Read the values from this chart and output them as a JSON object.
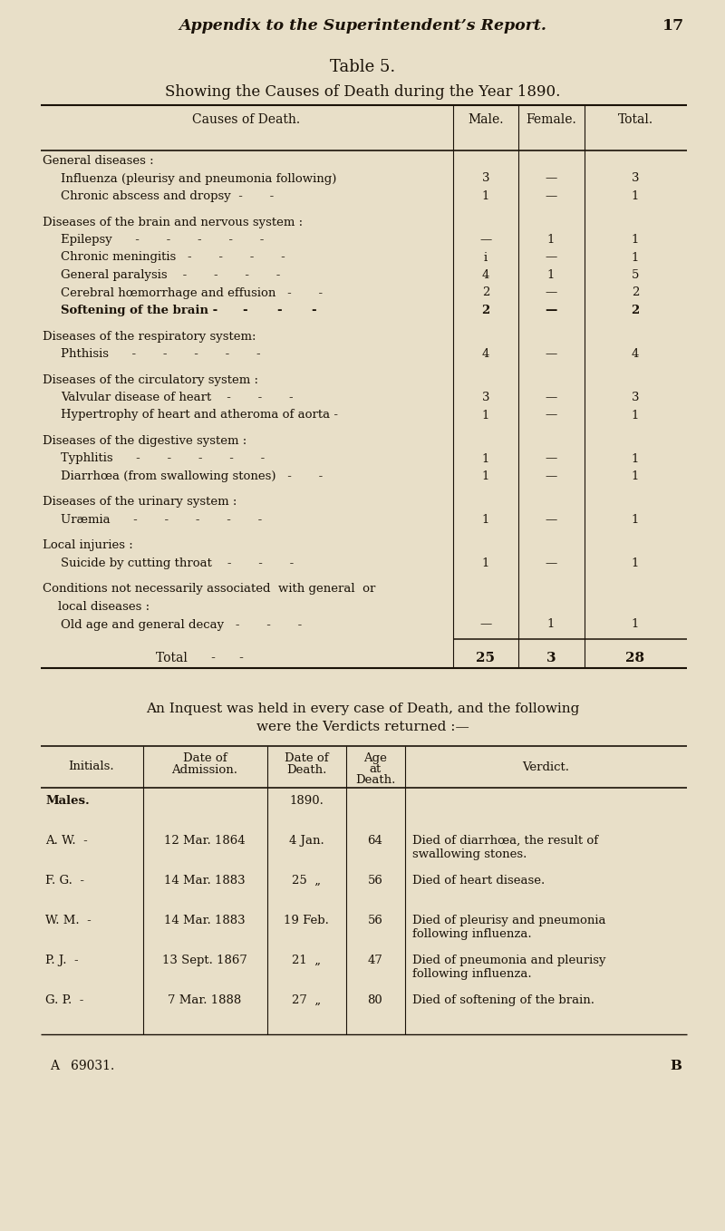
{
  "bg_color": "#e8dfc8",
  "page_header": "Appendix to the Superintendent’s Report.",
  "page_number": "17",
  "table_title": "Table 5.",
  "table_subtitle": "Showing the Causes of Death during the Year 1890.",
  "table1_rows": [
    {
      "indent": 0,
      "text": "General diseases :",
      "male": "",
      "female": "",
      "total": ""
    },
    {
      "indent": 1,
      "text": "Influenza (pleurisy and pneumonia following)",
      "male": "3",
      "female": "—",
      "total": "3"
    },
    {
      "indent": 1,
      "text": "Chronic abscess and dropsy  -       -",
      "male": "1",
      "female": "—",
      "total": "1"
    },
    {
      "indent": -1,
      "text": "",
      "male": "",
      "female": "",
      "total": ""
    },
    {
      "indent": 0,
      "text": "Diseases of the brain and nervous system :",
      "male": "",
      "female": "",
      "total": ""
    },
    {
      "indent": 1,
      "text": "Epilepsy      -       -       -       -       -",
      "male": "—",
      "female": "1",
      "total": "1"
    },
    {
      "indent": 1,
      "text": "Chronic meningitis   -       -       -       -",
      "male": "i",
      "female": "—",
      "total": "1"
    },
    {
      "indent": 1,
      "text": "General paralysis    -       -       -       -",
      "male": "4",
      "female": "1",
      "total": "5"
    },
    {
      "indent": 1,
      "text": "Cerebral hœmorrhage and effusion   -       -",
      "male": "2",
      "female": "—",
      "total": "2"
    },
    {
      "indent": 1,
      "text": "Softening of the brain -      -       -       -",
      "male": "2",
      "female": "—",
      "total": "2",
      "bold": true
    },
    {
      "indent": -1,
      "text": "",
      "male": "",
      "female": "",
      "total": ""
    },
    {
      "indent": 0,
      "text": "Diseases of the respiratory system:",
      "male": "",
      "female": "",
      "total": ""
    },
    {
      "indent": 1,
      "text": "Phthisis      -       -       -       -       -",
      "male": "4",
      "female": "—",
      "total": "4"
    },
    {
      "indent": -1,
      "text": "",
      "male": "",
      "female": "",
      "total": ""
    },
    {
      "indent": 0,
      "text": "Diseases of the circulatory system :",
      "male": "",
      "female": "",
      "total": ""
    },
    {
      "indent": 1,
      "text": "Valvular disease of heart    -       -       -",
      "male": "3",
      "female": "—",
      "total": "3"
    },
    {
      "indent": 1,
      "text": "Hypertrophy of heart and atheroma of aorta -",
      "male": "1",
      "female": "—",
      "total": "1"
    },
    {
      "indent": -1,
      "text": "",
      "male": "",
      "female": "",
      "total": ""
    },
    {
      "indent": 0,
      "text": "Diseases of the digestive system :",
      "male": "",
      "female": "",
      "total": ""
    },
    {
      "indent": 1,
      "text": "Typhlitis      -       -       -       -       -",
      "male": "1",
      "female": "—",
      "total": "1"
    },
    {
      "indent": 1,
      "text": "Diarrhœa (from swallowing stones)   -       -",
      "male": "1",
      "female": "—",
      "total": "1"
    },
    {
      "indent": -1,
      "text": "",
      "male": "",
      "female": "",
      "total": ""
    },
    {
      "indent": 0,
      "text": "Diseases of the urinary system :",
      "male": "",
      "female": "",
      "total": ""
    },
    {
      "indent": 1,
      "text": "Uræmia      -       -       -       -       -",
      "male": "1",
      "female": "—",
      "total": "1"
    },
    {
      "indent": -1,
      "text": "",
      "male": "",
      "female": "",
      "total": ""
    },
    {
      "indent": 0,
      "text": "Local injuries :",
      "male": "",
      "female": "",
      "total": ""
    },
    {
      "indent": 1,
      "text": "Suicide by cutting throat    -       -       -",
      "male": "1",
      "female": "—",
      "total": "1"
    },
    {
      "indent": -1,
      "text": "",
      "male": "",
      "female": "",
      "total": ""
    },
    {
      "indent": 0,
      "text": "Conditions not necessarily associated  with general  or",
      "male": "",
      "female": "",
      "total": ""
    },
    {
      "indent": 0,
      "text": "    local diseases :",
      "male": "",
      "female": "",
      "total": ""
    },
    {
      "indent": 1,
      "text": "Old age and general decay   -       -       -",
      "male": "—",
      "female": "1",
      "total": "1"
    }
  ],
  "total_row": {
    "text": "Total      -      -",
    "male": "25",
    "female": "3",
    "total": "28"
  },
  "inquest_header_line1": "An Inquest was held in every case of Death, and the following",
  "inquest_header_line2": "were the Verdicts returned :—",
  "verdict_rows": [
    {
      "initials": "Males.",
      "admission": "",
      "death": "1890.",
      "age": "",
      "verdict": "",
      "bold": true
    },
    {
      "initials": "A. W.  -",
      "admission": "12 Mar. 1864",
      "death": "4 Jan.",
      "age": "64",
      "verdict": "Died of diarrhœa, the result of\nswallowing stones."
    },
    {
      "initials": "F. G.  -",
      "admission": "14 Mar. 1883",
      "death": "25  „",
      "age": "56",
      "verdict": "Died of heart disease."
    },
    {
      "initials": "W. M.  -",
      "admission": "14 Mar. 1883",
      "death": "19 Feb.",
      "age": "56",
      "verdict": "Died of pleurisy and pneumonia\nfollowing influenza."
    },
    {
      "initials": "P. J.  -",
      "admission": "13 Sept. 1867",
      "death": "21  „",
      "age": "47",
      "verdict": "Died of pneumonia and pleurisy\nfollowing influenza."
    },
    {
      "initials": "G. P.  -",
      "admission": "7 Mar. 1888",
      "death": "27  „",
      "age": "80",
      "verdict": "Died of softening of the brain."
    }
  ],
  "footer_left": "A   69031.",
  "footer_right": "B"
}
